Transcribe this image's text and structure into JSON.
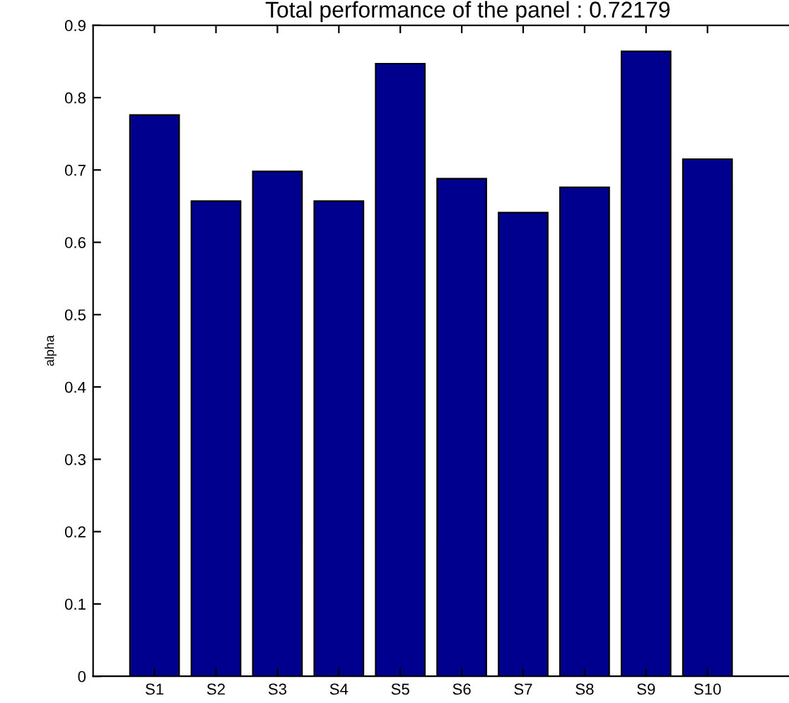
{
  "chart_data": {
    "type": "bar",
    "title": "Total performance of the panel : 0.72179",
    "ylabel": "alpha",
    "categories": [
      "S1",
      "S2",
      "S3",
      "S4",
      "S5",
      "S6",
      "S7",
      "S8",
      "S9",
      "S10"
    ],
    "values": [
      0.776,
      0.657,
      0.698,
      0.657,
      0.847,
      0.688,
      0.641,
      0.676,
      0.864,
      0.715
    ],
    "color": "#00008f",
    "ylim": [
      0,
      0.9
    ],
    "yticks": [
      0,
      0.1,
      0.2,
      0.3,
      0.4,
      0.5,
      0.6,
      0.7,
      0.8,
      0.9
    ],
    "grid": false
  }
}
